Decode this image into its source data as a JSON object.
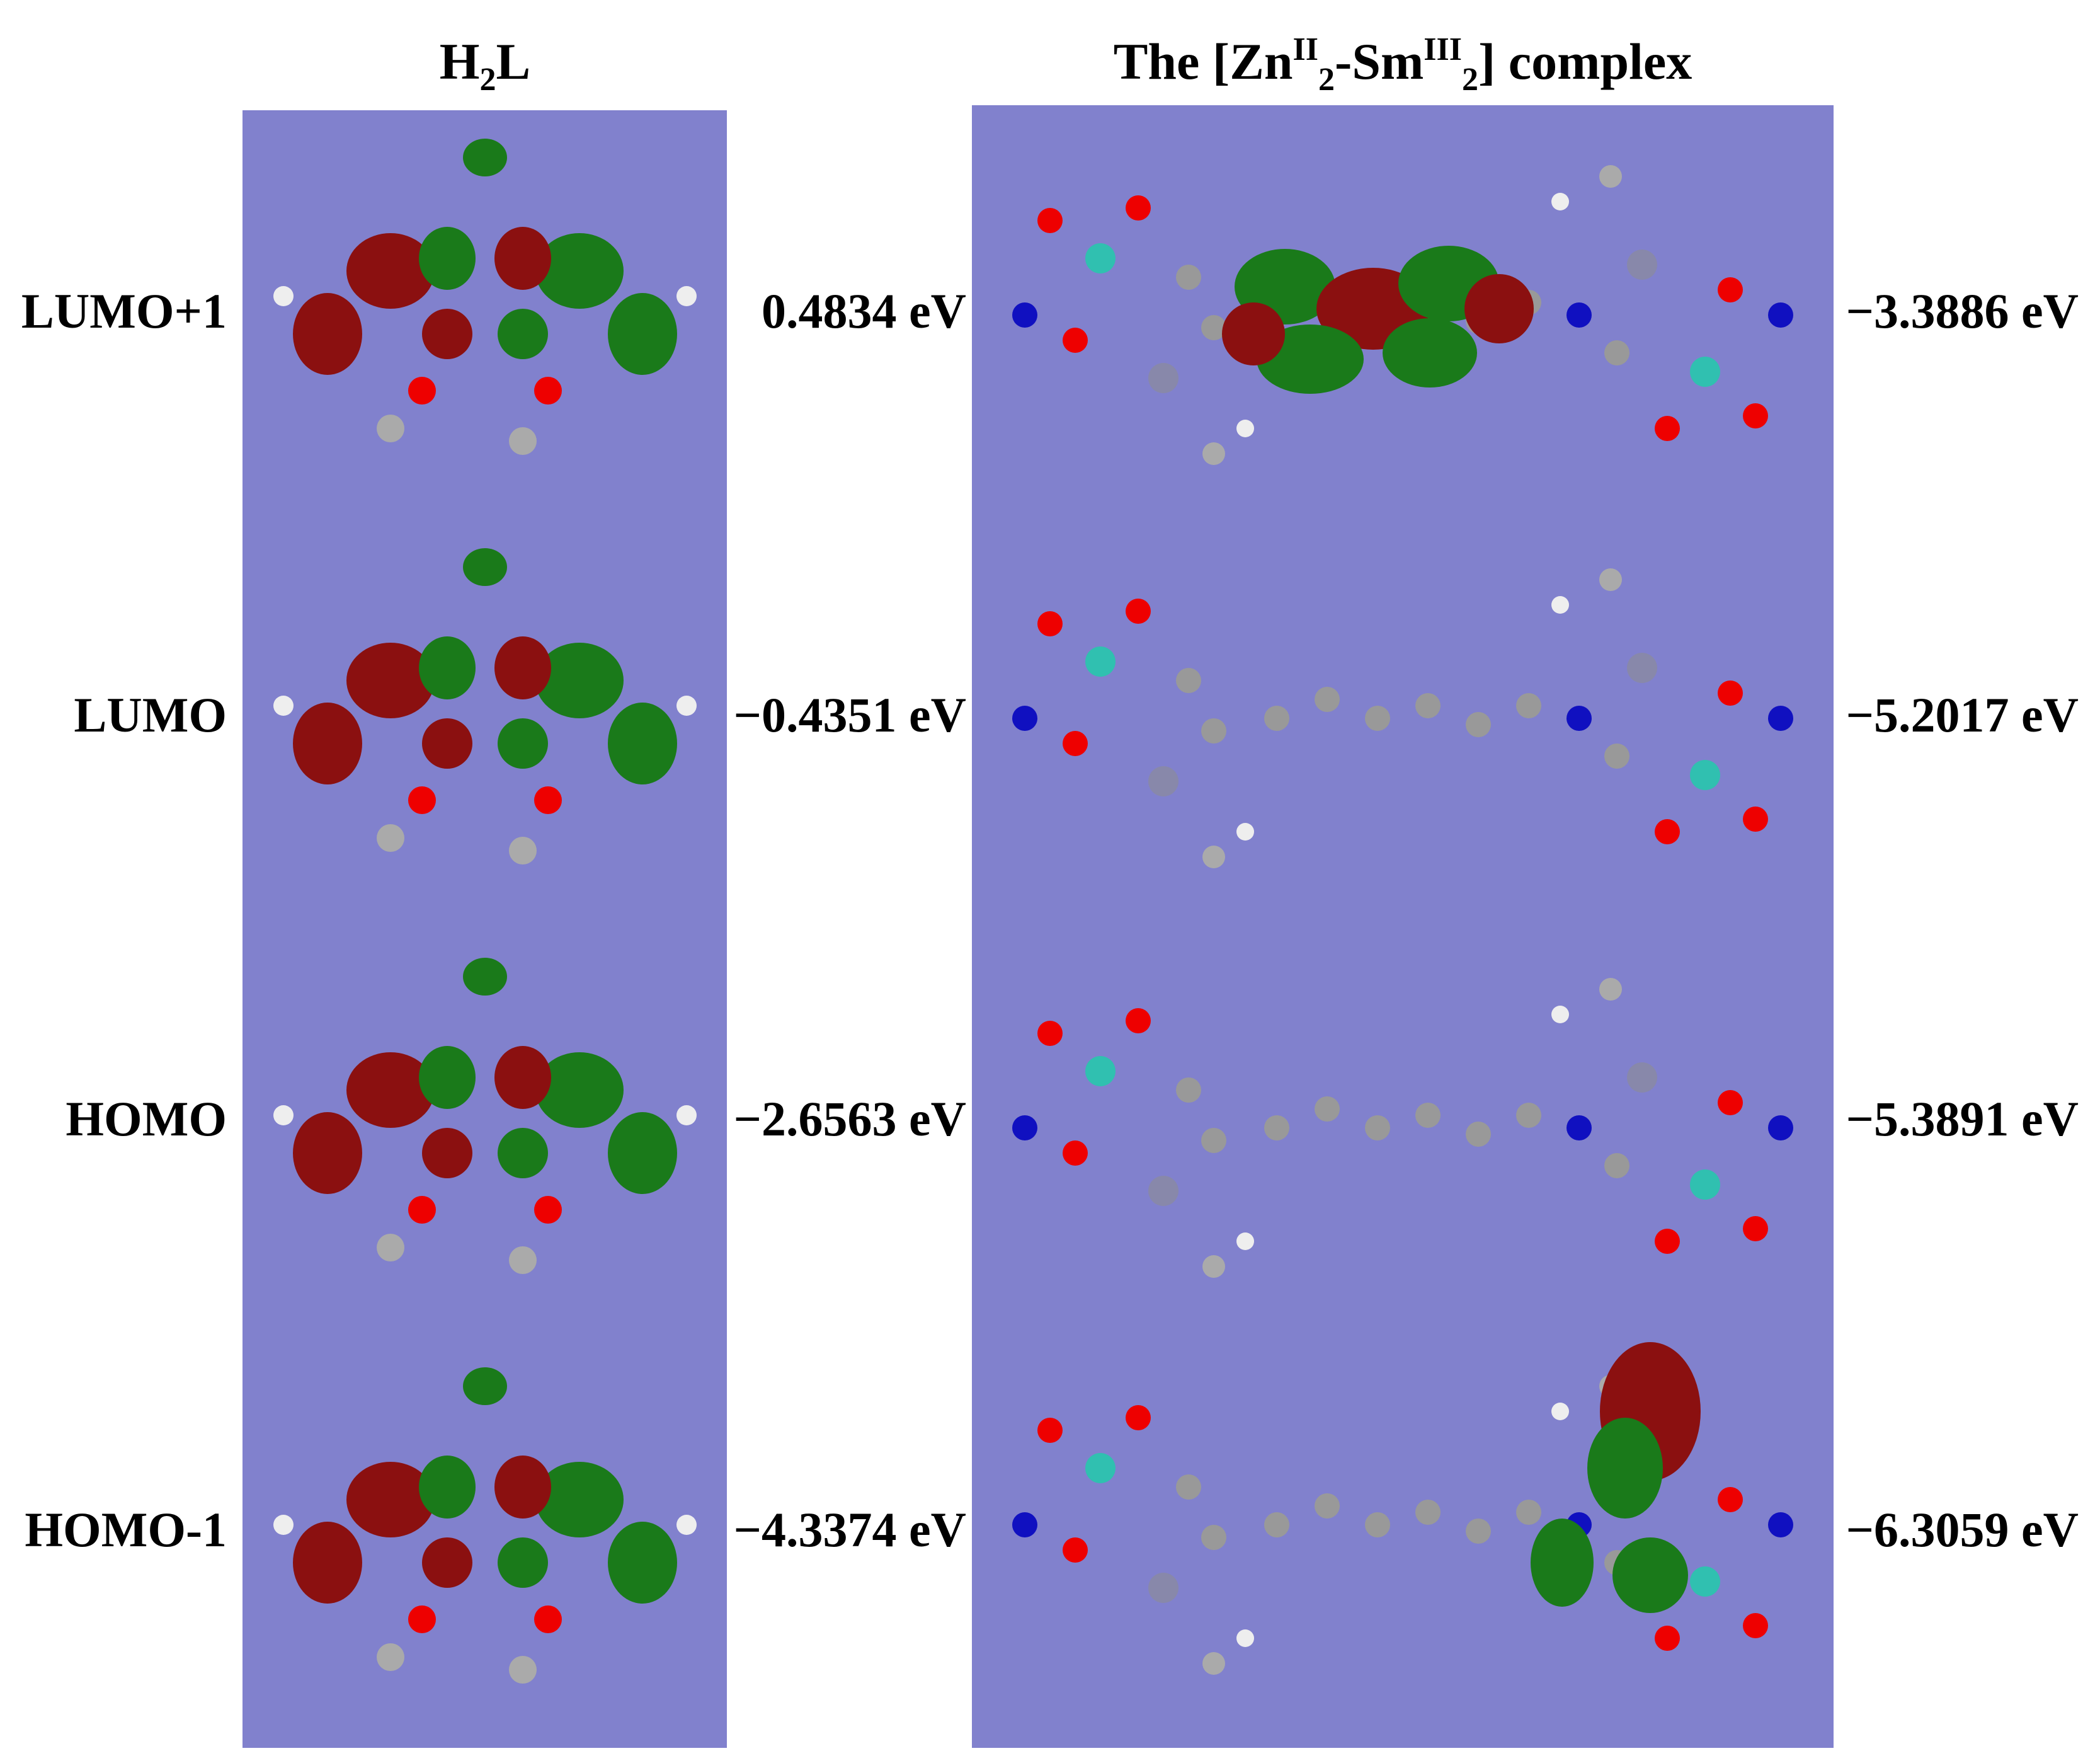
{
  "columns": [
    {
      "title_parts": [
        "H",
        "2",
        "L"
      ]
    },
    {
      "title_parts": [
        "The [Zn",
        "II",
        "2",
        "-Sm",
        "III",
        "2",
        "] complex"
      ]
    }
  ],
  "rows": [
    {
      "label": "LUMO+1",
      "ligand_energy": "0.4834 eV",
      "complex_energy": "−3.3886 eV"
    },
    {
      "label": "LUMO",
      "ligand_energy": "−0.4351 eV",
      "complex_energy": "−5.2017 eV"
    },
    {
      "label": "HOMO",
      "ligand_energy": "−2.6563 eV",
      "complex_energy": "−5.3891 eV"
    },
    {
      "label": "HOMO-1",
      "ligand_energy": "−4.3374 eV",
      "complex_energy": "−6.3059 eV"
    }
  ]
}
